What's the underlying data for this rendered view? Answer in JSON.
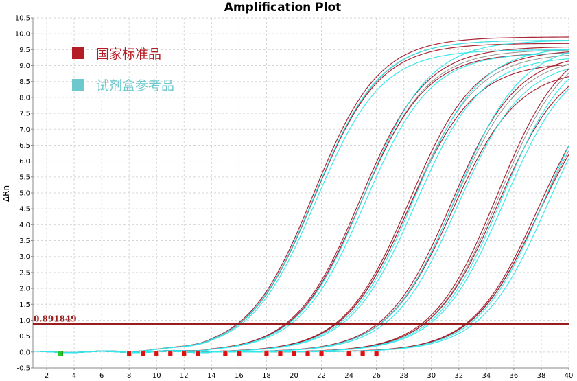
{
  "chart_data": {
    "type": "line",
    "title": "Amplification Plot",
    "ylabel": "ΔRn",
    "xlabel": "",
    "xlim": [
      1,
      40
    ],
    "ylim": [
      -0.5,
      10.5
    ],
    "x_ticks": [
      2,
      4,
      6,
      8,
      10,
      12,
      14,
      16,
      18,
      20,
      22,
      24,
      26,
      28,
      30,
      32,
      34,
      36,
      38,
      40
    ],
    "y_ticks": [
      -0.5,
      0.0,
      0.5,
      1.0,
      1.5,
      2.0,
      2.5,
      3.0,
      3.5,
      4.0,
      4.5,
      5.0,
      5.5,
      6.0,
      6.5,
      7.0,
      7.5,
      8.0,
      8.5,
      9.0,
      9.5,
      10.0,
      10.5
    ],
    "y_tick_labels": [
      "-0.5",
      "0.0",
      "0.5",
      "1.0",
      "1.5",
      "2.0",
      "2.5",
      "3.0",
      "3.5",
      "4.0",
      "4.5",
      "5.0",
      "5.5",
      "6.0",
      "6.5",
      "7.0",
      "7.5",
      "8.0",
      "8.5",
      "9.0",
      "9.5",
      "10.0",
      "10.5"
    ],
    "grid": true,
    "legend_position": "top-left",
    "threshold": {
      "value": 0.891849,
      "label": "0.891849",
      "color": "#9b1c1c"
    },
    "colors": {
      "standard": "#a31b2b",
      "kit": "#33e6ea",
      "standard_legend": "#b41c26",
      "kit_legend": "#6cc8cc",
      "dark_overlay": "#4a4a4a"
    },
    "series": [
      {
        "name": "国家标准品",
        "group": "standard",
        "curves": [
          {
            "ct": 15.9,
            "plateau": 9.9
          },
          {
            "ct": 16.0,
            "plateau": 9.7
          },
          {
            "ct": 19.4,
            "plateau": 9.6
          },
          {
            "ct": 19.5,
            "plateau": 9.4
          },
          {
            "ct": 23.0,
            "plateau": 9.5
          },
          {
            "ct": 23.1,
            "plateau": 9.1
          },
          {
            "ct": 26.1,
            "plateau": 9.4
          },
          {
            "ct": 26.3,
            "plateau": 8.9
          },
          {
            "ct": 29.3,
            "plateau": 9.9
          },
          {
            "ct": 29.5,
            "plateau": 9.3
          },
          {
            "ct": 32.5,
            "plateau": 9.0
          },
          {
            "ct": 32.6,
            "plateau": 8.6
          }
        ]
      },
      {
        "name": "试剂盒参考品",
        "group": "kit",
        "curves": [
          {
            "ct": 16.0,
            "plateau": 9.8
          },
          {
            "ct": 16.2,
            "plateau": 9.5
          },
          {
            "ct": 19.6,
            "plateau": 9.8
          },
          {
            "ct": 19.8,
            "plateau": 9.4
          },
          {
            "ct": 23.3,
            "plateau": 9.6
          },
          {
            "ct": 23.5,
            "plateau": 9.3
          },
          {
            "ct": 26.3,
            "plateau": 9.7
          },
          {
            "ct": 26.6,
            "plateau": 9.2
          },
          {
            "ct": 29.7,
            "plateau": 9.7
          },
          {
            "ct": 29.9,
            "plateau": 9.4
          },
          {
            "ct": 32.8,
            "plateau": 9.5
          },
          {
            "ct": 33.1,
            "plateau": 9.2
          }
        ]
      }
    ],
    "baseline_markers": {
      "green_cycle": 3,
      "red_cycles": [
        8,
        9,
        10,
        11,
        12,
        13,
        15,
        16,
        18,
        19,
        20,
        21,
        22,
        24,
        25,
        26
      ]
    }
  },
  "legend": {
    "items": [
      {
        "label": "国家标准品",
        "color": "#b41c26"
      },
      {
        "label": "试剂盒参考品",
        "color": "#6cc8cc"
      }
    ]
  }
}
